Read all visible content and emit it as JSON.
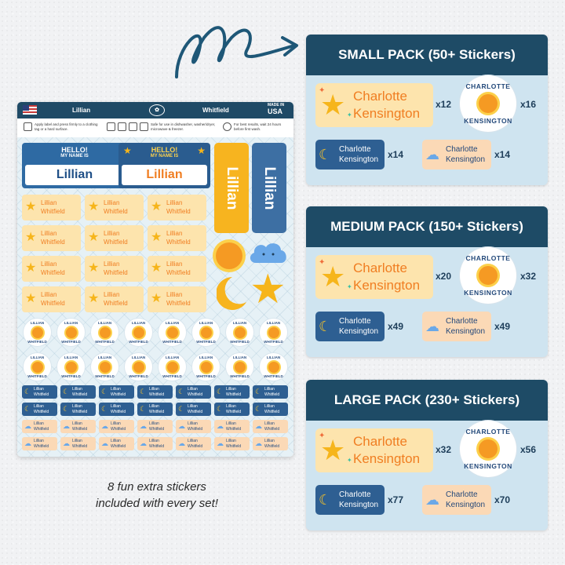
{
  "sheet": {
    "first_name": "Lillian",
    "last_name": "Whitfield",
    "made_in_top": "MADE IN",
    "made_in_country": "USA",
    "instructions": [
      "Apply label and press firmly to a clothing tag or a hard surface.",
      "Safe for use in dishwasher, washer/dryer, microwave & freezer.",
      "For best results, wait 24 hours before first wash."
    ],
    "hello_line1": "HELLO!",
    "hello_line2": "MY NAME IS",
    "circle_top": "LILLIAN",
    "circle_bottom": "WHITFIELD"
  },
  "caption": {
    "line1": "8 fun extra stickers",
    "line2": "included with every set!"
  },
  "sample_name": {
    "first": "Charlotte",
    "last": "Kensington",
    "round_top": "CHARLOTTE",
    "round_bottom": "KENSINGTON"
  },
  "packs": [
    {
      "title": "SMALL PACK (50+ Stickers)",
      "qty_large": "x12",
      "qty_round": "x16",
      "qty_blue": "x14",
      "qty_peach": "x14"
    },
    {
      "title": "MEDIUM PACK (150+ Stickers)",
      "qty_large": "x20",
      "qty_round": "x32",
      "qty_blue": "x49",
      "qty_peach": "x49"
    },
    {
      "title": "LARGE PACK (230+ Stickers)",
      "qty_large": "x32",
      "qty_round": "x56",
      "qty_blue": "x77",
      "qty_peach": "x70"
    }
  ],
  "icons": [
    "curly-arrow-icon",
    "us-flag-icon",
    "star-icon",
    "sun-icon",
    "moon-icon",
    "cloud-icon"
  ],
  "colors": {
    "header_navy": "#1e4b66",
    "card_blue": "#cfe4f0",
    "label_yellow": "#fde4ad",
    "name_orange": "#f07e22",
    "tag_blue": "#2e5f92",
    "tag_peach": "#fbd9b6"
  }
}
